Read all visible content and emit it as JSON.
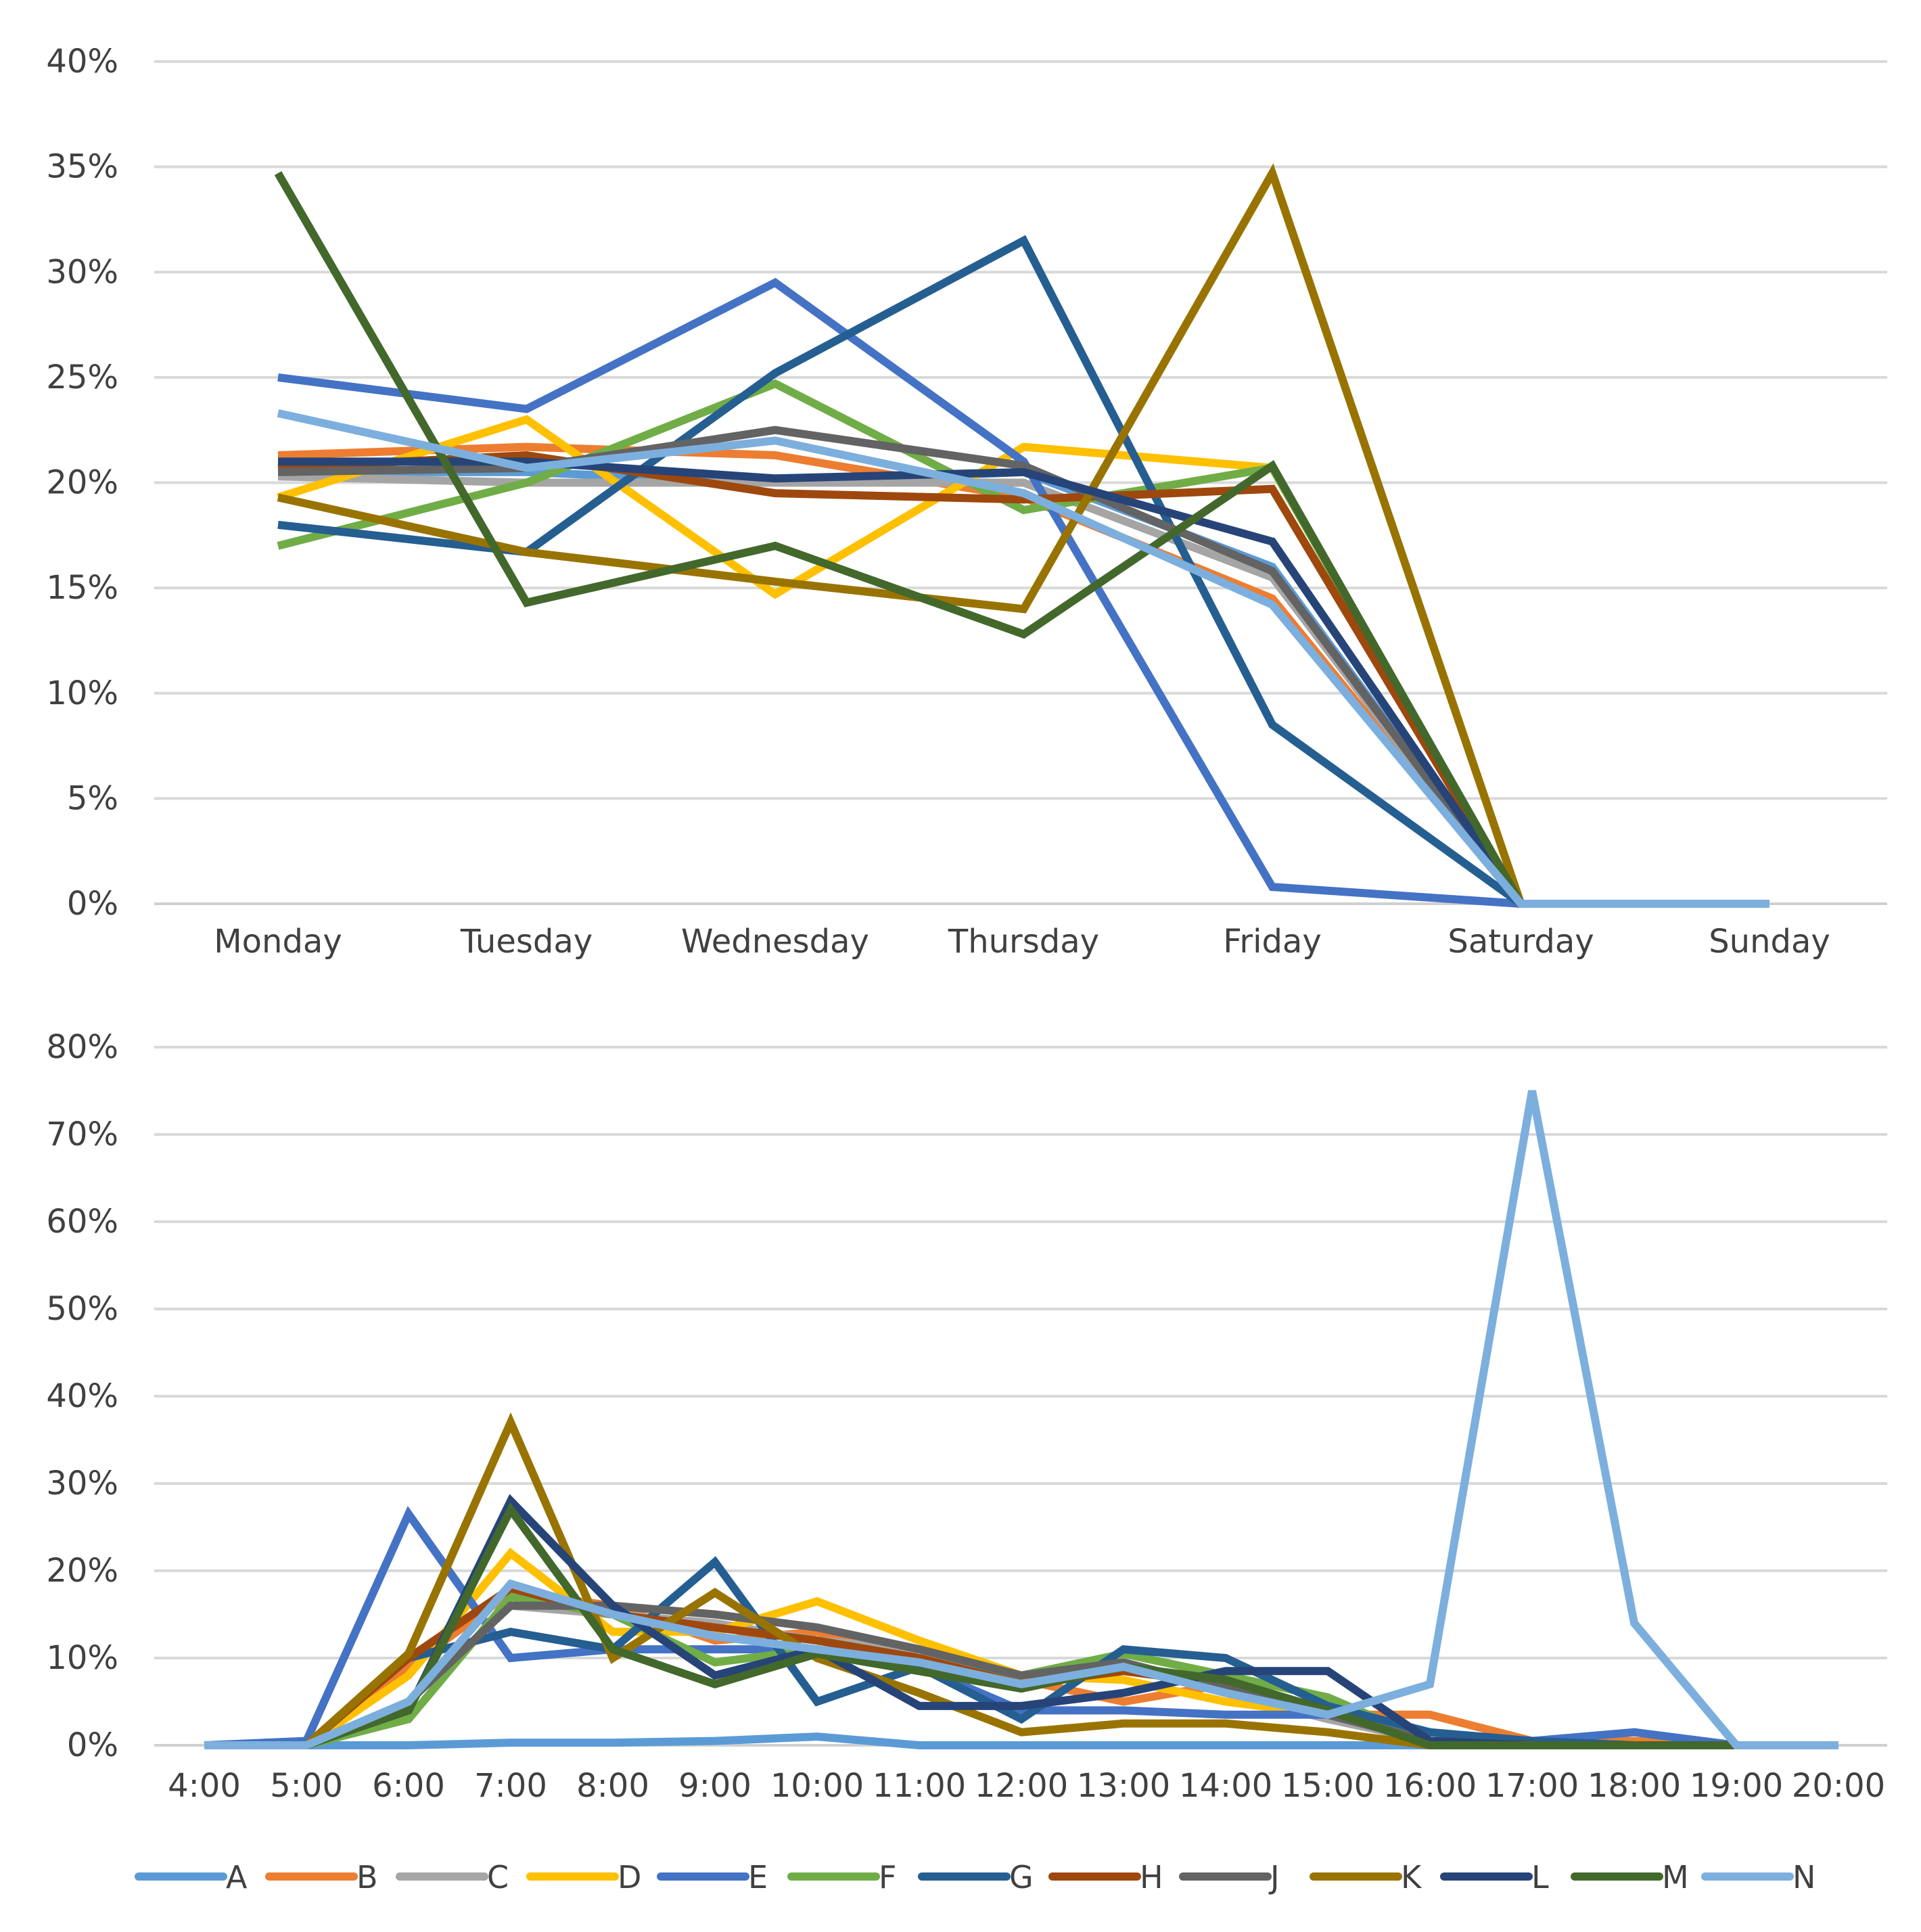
{
  "legend": [
    {
      "name": "A",
      "color": "#5B9BD5"
    },
    {
      "name": "B",
      "color": "#ED7D31"
    },
    {
      "name": "C",
      "color": "#A5A5A5"
    },
    {
      "name": "D",
      "color": "#FFC000"
    },
    {
      "name": "E",
      "color": "#4472C4"
    },
    {
      "name": "F",
      "color": "#70AD47"
    },
    {
      "name": "G",
      "color": "#255E91"
    },
    {
      "name": "H",
      "color": "#9E480E"
    },
    {
      "name": "J",
      "color": "#636363"
    },
    {
      "name": "K",
      "color": "#997300"
    },
    {
      "name": "L",
      "color": "#264478"
    },
    {
      "name": "M",
      "color": "#43682B"
    },
    {
      "name": "N",
      "color": "#7CAFDD"
    }
  ],
  "chart_data": [
    {
      "type": "line",
      "title": "",
      "xlabel": "",
      "ylabel": "",
      "categories": [
        "Monday",
        "Tuesday",
        "Wednesday",
        "Thursday",
        "Friday",
        "Saturday",
        "Sunday"
      ],
      "ylim": [
        0,
        40
      ],
      "yticks": [
        0,
        5,
        10,
        15,
        20,
        25,
        30,
        35,
        40
      ],
      "ytick_labels": [
        "0%",
        "5%",
        "10%",
        "15%",
        "20%",
        "25%",
        "30%",
        "35%",
        "40%"
      ],
      "grid": true,
      "series": [
        {
          "name": "A",
          "values": [
            20.5,
            20.5,
            20.0,
            20.5,
            16.0,
            0,
            0
          ]
        },
        {
          "name": "B",
          "values": [
            21.3,
            21.7,
            21.3,
            19.3,
            14.5,
            0,
            0
          ]
        },
        {
          "name": "C",
          "values": [
            20.3,
            20.0,
            20.0,
            20.0,
            15.5,
            0,
            0
          ]
        },
        {
          "name": "D",
          "values": [
            19.3,
            23.0,
            14.7,
            21.7,
            20.7,
            0,
            0
          ]
        },
        {
          "name": "E",
          "values": [
            25.0,
            23.5,
            29.5,
            21.0,
            0.8,
            0,
            0
          ]
        },
        {
          "name": "F",
          "values": [
            17.0,
            20.0,
            24.7,
            18.7,
            20.7,
            0,
            0
          ]
        },
        {
          "name": "G",
          "values": [
            18.0,
            16.7,
            25.2,
            31.5,
            8.5,
            0,
            0
          ]
        },
        {
          "name": "H",
          "values": [
            20.7,
            21.3,
            19.5,
            19.2,
            19.7,
            0,
            0
          ]
        },
        {
          "name": "J",
          "values": [
            20.5,
            20.7,
            22.5,
            20.8,
            15.8,
            0,
            0
          ]
        },
        {
          "name": "K",
          "values": [
            19.3,
            16.7,
            15.3,
            14.0,
            34.7,
            0,
            0
          ]
        },
        {
          "name": "L",
          "values": [
            21.0,
            21.0,
            20.2,
            20.5,
            17.2,
            0,
            0
          ]
        },
        {
          "name": "M",
          "values": [
            34.7,
            14.3,
            17.0,
            12.8,
            20.8,
            0,
            0
          ]
        },
        {
          "name": "N",
          "values": [
            23.3,
            20.7,
            22.0,
            19.5,
            14.2,
            0,
            0
          ]
        }
      ]
    },
    {
      "type": "line",
      "title": "",
      "xlabel": "",
      "ylabel": "",
      "categories": [
        "4:00",
        "5:00",
        "6:00",
        "7:00",
        "8:00",
        "9:00",
        "10:00",
        "11:00",
        "12:00",
        "13:00",
        "14:00",
        "15:00",
        "16:00",
        "17:00",
        "18:00",
        "19:00",
        "20:00"
      ],
      "ylim": [
        0,
        80
      ],
      "yticks": [
        0,
        10,
        20,
        30,
        40,
        50,
        60,
        70,
        80
      ],
      "ytick_labels": [
        "0%",
        "10%",
        "20%",
        "30%",
        "40%",
        "50%",
        "60%",
        "70%",
        "80%"
      ],
      "grid": true,
      "series": [
        {
          "name": "A",
          "values": [
            0,
            0,
            0,
            0.3,
            0.3,
            0.5,
            1.0,
            0,
            0,
            0,
            0,
            0,
            0,
            0,
            0,
            0,
            0
          ]
        },
        {
          "name": "B",
          "values": [
            0,
            0,
            9,
            17.5,
            16,
            12,
            13,
            10,
            7.5,
            5,
            7,
            3.5,
            3.5,
            0.5,
            0.5,
            0,
            0
          ]
        },
        {
          "name": "C",
          "values": [
            0,
            0,
            5,
            16,
            15,
            14,
            12,
            11,
            7,
            9,
            6,
            3,
            0.5,
            0,
            0,
            0,
            0
          ]
        },
        {
          "name": "D",
          "values": [
            0,
            0,
            8,
            22,
            13,
            13,
            16.5,
            12,
            8,
            7.5,
            5,
            3.5,
            0.5,
            0,
            0,
            0,
            0
          ]
        },
        {
          "name": "E",
          "values": [
            0,
            0.5,
            26.5,
            10,
            11,
            11,
            11,
            9,
            4,
            4,
            3.5,
            3.5,
            0.5,
            0.5,
            1.5,
            0,
            0
          ]
        },
        {
          "name": "F",
          "values": [
            0,
            0,
            3,
            17,
            15,
            9.5,
            11,
            9,
            8,
            10.5,
            8,
            5.5,
            0.5,
            0,
            0,
            0,
            0
          ]
        },
        {
          "name": "G",
          "values": [
            0,
            0,
            10,
            13,
            11,
            21,
            5,
            9,
            3,
            11,
            10,
            4.5,
            1.5,
            0.5,
            0,
            0,
            0
          ]
        },
        {
          "name": "H",
          "values": [
            0,
            0,
            10,
            18,
            15,
            13.5,
            12,
            10,
            7,
            8.5,
            7,
            3.5,
            0.5,
            0,
            0,
            0,
            0
          ]
        },
        {
          "name": "J",
          "values": [
            0,
            0,
            5,
            16,
            16,
            15,
            13.5,
            11,
            8,
            9.5,
            6.5,
            3.5,
            0.5,
            0,
            0,
            0,
            0
          ]
        },
        {
          "name": "K",
          "values": [
            0,
            0,
            10.5,
            37,
            10,
            17.5,
            10,
            6,
            1.5,
            2.5,
            2.5,
            1.5,
            0,
            0,
            0,
            0,
            0
          ]
        },
        {
          "name": "L",
          "values": [
            0,
            0,
            4,
            28,
            16,
            8,
            11,
            4.5,
            4.5,
            6,
            8.5,
            8.5,
            0.5,
            0,
            0,
            0,
            0
          ]
        },
        {
          "name": "M",
          "values": [
            0,
            0,
            4,
            27,
            11,
            7,
            10.5,
            8.5,
            6.5,
            9,
            7.5,
            4,
            0,
            0,
            0,
            0,
            0
          ]
        },
        {
          "name": "N",
          "values": [
            0,
            0,
            5,
            18.5,
            15,
            12.5,
            11,
            9.5,
            7,
            9,
            6,
            3.5,
            7,
            75,
            14,
            0,
            0
          ]
        }
      ]
    }
  ]
}
